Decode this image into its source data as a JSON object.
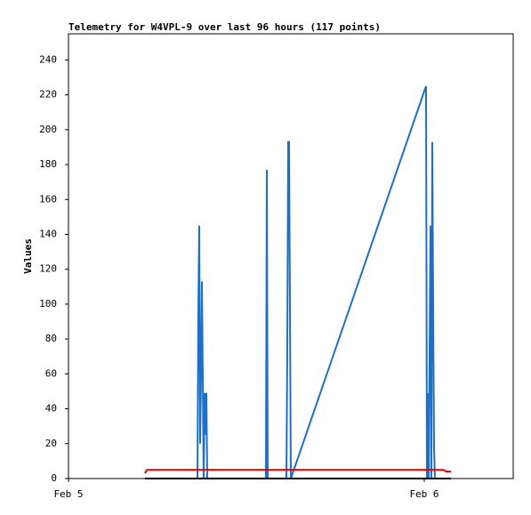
{
  "chart_data": {
    "type": "line",
    "title": "Telemetry for W4VPL-9 over last 96 hours (117 points)",
    "y_label": "Values",
    "xlim": [
      0,
      30
    ],
    "xticks": [
      {
        "value": 0,
        "label": "Feb 5"
      },
      {
        "value": 24,
        "label": "Feb 6"
      }
    ],
    "ylim": [
      0,
      255
    ],
    "yticks": [
      0,
      20,
      40,
      60,
      80,
      100,
      120,
      140,
      160,
      180,
      200,
      220,
      240
    ],
    "grid": false,
    "series": [
      {
        "color": "#1f6fc6",
        "x": [
          5.16,
          8.7,
          8.76,
          8.82,
          8.88,
          8.94,
          9.0,
          9.06,
          9.12,
          9.18,
          9.24,
          9.3,
          9.36,
          13.32,
          13.38,
          13.44,
          14.7,
          14.76,
          14.82,
          14.88,
          14.94,
          15.0,
          24.12,
          24.18,
          24.24,
          24.3,
          24.36,
          24.42,
          24.48,
          24.54,
          24.6,
          24.66,
          24.72,
          25.8
        ],
        "values": [
          0,
          0,
          97,
          145,
          20,
          60,
          113,
          57,
          0,
          49,
          25,
          49,
          0,
          0,
          177,
          0,
          0,
          73,
          193,
          193,
          97,
          0,
          225,
          0,
          49,
          0,
          73,
          145,
          0,
          193,
          97,
          17,
          0,
          0
        ]
      },
      {
        "color": "#e00000",
        "x": [
          5.16,
          5.3,
          25.3,
          25.45,
          25.6,
          25.8
        ],
        "values": [
          3,
          5,
          5,
          4,
          4,
          4
        ]
      },
      {
        "color": "#000000",
        "x": [
          5.16,
          25.8
        ],
        "values": [
          0,
          0
        ]
      }
    ]
  }
}
